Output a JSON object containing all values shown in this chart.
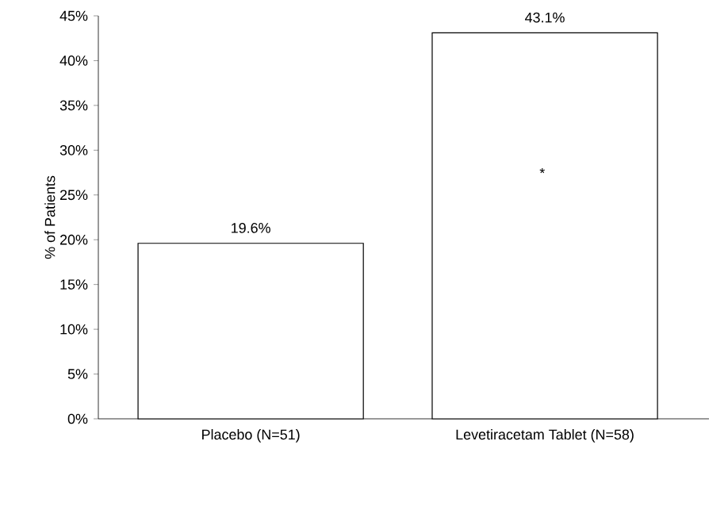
{
  "chart_data": {
    "type": "bar",
    "ylabel": "% of Patients",
    "categories": [
      "Placebo (N=51)",
      "Levetiracetam Tablet (N=58)"
    ],
    "values": [
      19.6,
      43.1
    ],
    "color": "#ffffff",
    "value_labels": [
      "19.6%",
      "43.1%"
    ],
    "ylim": [
      0,
      45
    ],
    "yticks": [
      {
        "value": 0,
        "label": "0%"
      },
      {
        "value": 5,
        "label": "5%"
      },
      {
        "value": 10,
        "label": "10%"
      },
      {
        "value": 15,
        "label": "15%"
      },
      {
        "value": 20,
        "label": "20%"
      },
      {
        "value": 25,
        "label": "25%"
      },
      {
        "value": 30,
        "label": "30%"
      },
      {
        "value": 35,
        "label": "35%"
      },
      {
        "value": 40,
        "label": "40%"
      },
      {
        "value": 45,
        "label": "45%"
      }
    ],
    "annotations": [
      "*"
    ],
    "grid": false
  }
}
